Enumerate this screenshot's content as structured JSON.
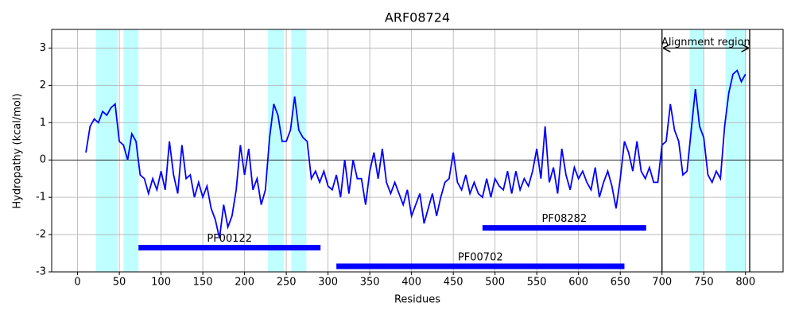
{
  "chart_data": {
    "type": "line",
    "title": "ARF08724",
    "x_label": "Residues",
    "y_label": "Hydropathy (kcal/mol)",
    "xlim": [
      -31,
      845
    ],
    "ylim": [
      -3,
      3.5
    ],
    "xticks": [
      0,
      50,
      100,
      150,
      200,
      250,
      300,
      350,
      400,
      450,
      500,
      550,
      600,
      650,
      700,
      750,
      800
    ],
    "yticks": [
      -3,
      -2,
      -1,
      0,
      1,
      2,
      3
    ],
    "grid": true,
    "hlines": [
      0
    ],
    "highlight_color": "#bfffff",
    "highlight_regions": [
      [
        22,
        48
      ],
      [
        55,
        73
      ],
      [
        228,
        247
      ],
      [
        256,
        274
      ],
      [
        733,
        750
      ],
      [
        776,
        800
      ]
    ],
    "domain_color": "#0000ff",
    "domains": [
      {
        "label": "PF00122",
        "start": 73,
        "end": 291,
        "y": -2.35
      },
      {
        "label": "PF00702",
        "start": 310,
        "end": 655,
        "y": -2.85
      },
      {
        "label": "PF08282",
        "start": 485,
        "end": 681,
        "y": -1.82
      }
    ],
    "vlines": [
      700,
      805
    ],
    "annotation": {
      "text": "Alignment region",
      "start": 700,
      "end": 805,
      "y": 3
    },
    "x": [
      10,
      15,
      20,
      25,
      30,
      35,
      40,
      45,
      50,
      55,
      60,
      65,
      70,
      75,
      80,
      85,
      90,
      95,
      100,
      105,
      110,
      115,
      120,
      125,
      130,
      135,
      140,
      145,
      150,
      155,
      160,
      165,
      170,
      175,
      180,
      185,
      190,
      195,
      200,
      205,
      210,
      215,
      220,
      225,
      230,
      235,
      240,
      245,
      250,
      255,
      260,
      265,
      270,
      275,
      280,
      285,
      290,
      295,
      300,
      305,
      310,
      315,
      320,
      325,
      330,
      335,
      340,
      345,
      350,
      355,
      360,
      365,
      370,
      375,
      380,
      385,
      390,
      395,
      400,
      405,
      410,
      415,
      420,
      425,
      430,
      435,
      440,
      445,
      450,
      455,
      460,
      465,
      470,
      475,
      480,
      485,
      490,
      495,
      500,
      505,
      510,
      515,
      520,
      525,
      530,
      535,
      540,
      545,
      550,
      555,
      560,
      565,
      570,
      575,
      580,
      585,
      590,
      595,
      600,
      605,
      610,
      615,
      620,
      625,
      630,
      635,
      640,
      645,
      650,
      655,
      660,
      665,
      670,
      675,
      680,
      685,
      690,
      695,
      700,
      705,
      710,
      715,
      720,
      725,
      730,
      735,
      740,
      745,
      750,
      755,
      760,
      765,
      770,
      775,
      780,
      785,
      790,
      795,
      800
    ],
    "series": [
      {
        "color": "#0000ff",
        "values": [
          0.2,
          0.9,
          1.1,
          1.0,
          1.3,
          1.2,
          1.4,
          1.5,
          0.5,
          0.4,
          0.0,
          0.7,
          0.5,
          -0.4,
          -0.5,
          -0.9,
          -0.5,
          -0.8,
          -0.3,
          -0.8,
          0.5,
          -0.4,
          -0.9,
          0.4,
          -0.5,
          -0.4,
          -1.0,
          -0.6,
          -1.0,
          -0.7,
          -1.3,
          -1.6,
          -2.1,
          -1.2,
          -1.8,
          -1.5,
          -0.8,
          0.4,
          -0.4,
          0.3,
          -0.8,
          -0.5,
          -1.2,
          -0.8,
          0.6,
          1.5,
          1.2,
          0.5,
          0.5,
          0.8,
          1.7,
          0.8,
          0.6,
          0.5,
          -0.5,
          -0.3,
          -0.6,
          -0.3,
          -0.7,
          -0.8,
          -0.4,
          -1.0,
          0.0,
          -0.9,
          0.0,
          -0.5,
          -0.5,
          -1.2,
          -0.3,
          0.2,
          -0.5,
          0.3,
          -0.6,
          -0.9,
          -0.6,
          -0.9,
          -1.2,
          -0.8,
          -1.5,
          -1.2,
          -0.9,
          -1.7,
          -1.3,
          -0.9,
          -1.5,
          -1.0,
          -0.6,
          -0.5,
          0.2,
          -0.6,
          -0.8,
          -0.4,
          -0.9,
          -0.6,
          -0.9,
          -1.0,
          -0.5,
          -1.0,
          -0.5,
          -0.7,
          -0.8,
          -0.3,
          -0.9,
          -0.3,
          -0.8,
          -0.5,
          -0.7,
          -0.3,
          0.3,
          -0.5,
          0.9,
          -0.6,
          -0.2,
          -0.9,
          0.3,
          -0.4,
          -0.8,
          -0.2,
          -0.5,
          -0.3,
          -0.6,
          -0.8,
          -0.2,
          -1.0,
          -0.6,
          -0.3,
          -0.7,
          -1.3,
          -0.5,
          0.5,
          0.2,
          -0.3,
          0.5,
          -0.3,
          -0.5,
          -0.2,
          -0.6,
          -0.6,
          0.4,
          0.5,
          1.5,
          0.8,
          0.5,
          -0.4,
          -0.3,
          0.8,
          1.9,
          0.9,
          0.6,
          -0.4,
          -0.6,
          -0.3,
          -0.5,
          0.9,
          1.8,
          2.3,
          2.4,
          2.1,
          2.3
        ]
      }
    ]
  }
}
